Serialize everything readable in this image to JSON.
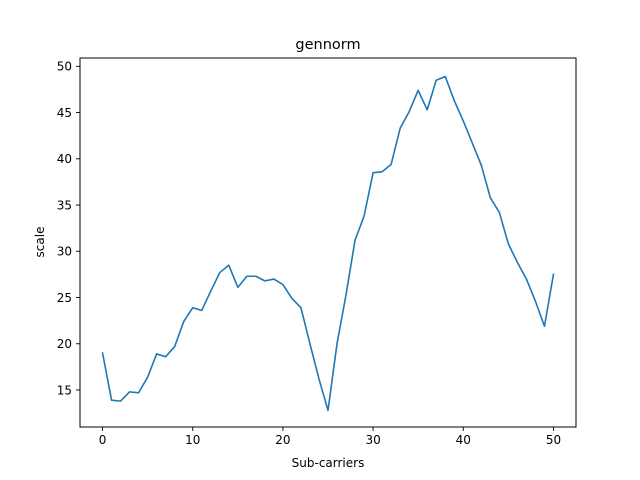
{
  "chart_data": {
    "type": "line",
    "title": "gennorm",
    "xlabel": "Sub-carriers",
    "ylabel": "scale",
    "xlim": [
      -2.5,
      52.5
    ],
    "ylim": [
      11.0,
      50.9
    ],
    "xticks": [
      0,
      10,
      20,
      30,
      40,
      50
    ],
    "yticks": [
      15,
      20,
      25,
      30,
      35,
      40,
      45,
      50
    ],
    "grid": false,
    "series": [
      {
        "color": "#1f77b4",
        "x": [
          0,
          1,
          2,
          3,
          4,
          5,
          6,
          7,
          8,
          9,
          10,
          11,
          12,
          13,
          14,
          15,
          16,
          17,
          18,
          19,
          20,
          21,
          22,
          23,
          24,
          25,
          26,
          27,
          28,
          29,
          30,
          31,
          32,
          33,
          34,
          35,
          36,
          37,
          38,
          39,
          40,
          41,
          42,
          43,
          44,
          45,
          46,
          47,
          48,
          49,
          50
        ],
        "values": [
          19.0,
          13.9,
          13.8,
          14.8,
          14.7,
          16.4,
          18.9,
          18.6,
          19.7,
          22.4,
          23.9,
          23.6,
          25.7,
          27.7,
          28.5,
          26.1,
          27.3,
          27.3,
          26.8,
          27.0,
          26.4,
          24.9,
          23.9,
          20.0,
          16.2,
          12.8,
          20.0,
          25.3,
          31.2,
          33.8,
          38.5,
          38.6,
          39.4,
          43.3,
          45.1,
          47.4,
          45.3,
          48.5,
          48.9,
          46.3,
          44.1,
          41.7,
          39.3,
          35.8,
          34.2,
          30.8,
          28.8,
          27.0,
          24.6,
          21.9,
          27.5
        ]
      }
    ]
  }
}
